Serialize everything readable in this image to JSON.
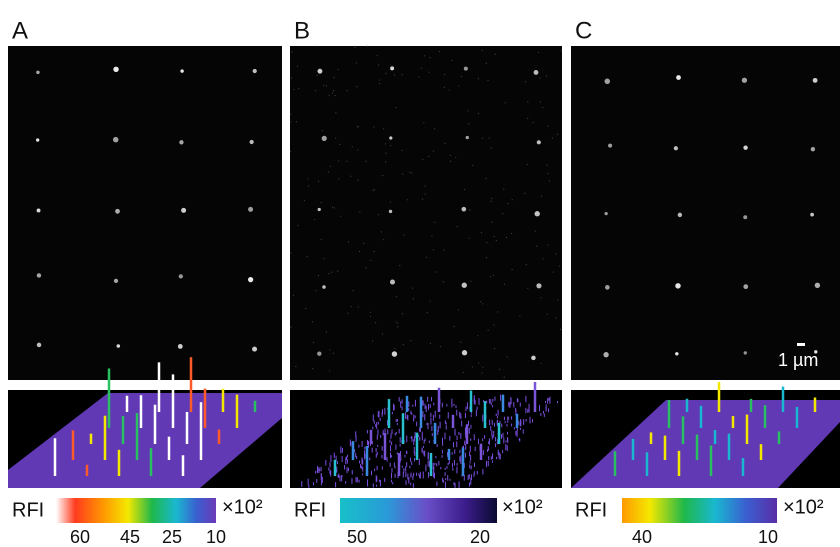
{
  "panels": [
    {
      "label": "A",
      "colorbar": {
        "label": "RFI",
        "multiplier": "×10²",
        "ticks": [
          60,
          45,
          25,
          10
        ]
      }
    },
    {
      "label": "B",
      "colorbar": {
        "label": "RFI",
        "multiplier": "×10²",
        "ticks": [
          50,
          20
        ]
      }
    },
    {
      "label": "C",
      "colorbar": {
        "label": "RFI",
        "multiplier": "×10²",
        "ticks": [
          40,
          10
        ]
      }
    }
  ],
  "scale_bar": "1 µm"
}
